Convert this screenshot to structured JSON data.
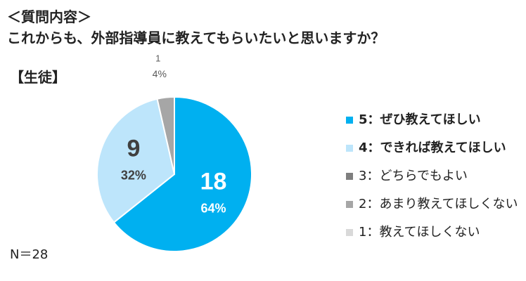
{
  "question_header": "＜質問内容＞",
  "question": "これからも、外部指導員に教えてもらいたいと思いますか？",
  "group_label": "【生徒】",
  "n_label": "N＝28",
  "chart_data": {
    "type": "pie",
    "start": "12 o'clock, clockwise",
    "slices": [
      {
        "label": "5：ぜひ教えてほしい",
        "count": 18,
        "percent": "64%",
        "color": "#00b0f0",
        "label_color": "#ffffff",
        "bold_legend": true
      },
      {
        "label": "4：できれば教えてほしい",
        "count": 9,
        "percent": "32%",
        "color": "#bde5fb",
        "label_color": "#404040",
        "bold_legend": true
      },
      {
        "label": "3：どちらでもよい",
        "count": 0,
        "percent": "",
        "color": "#7f7f7f",
        "bold_legend": false
      },
      {
        "label": "2：あまり教えてほしくない",
        "count": 1,
        "percent": "4%",
        "color": "#a6a6a6",
        "label_color": "#595959",
        "bold_legend": false
      },
      {
        "label": "1：教えてほしくない",
        "count": 0,
        "percent": "",
        "color": "#d9d9d9",
        "bold_legend": false
      }
    ],
    "total": 28
  }
}
